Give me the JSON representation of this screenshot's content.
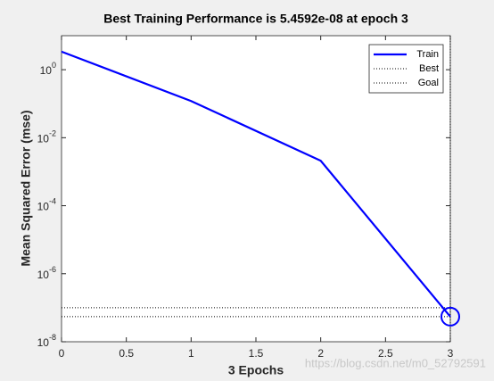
{
  "chart_data": {
    "type": "line",
    "title": "Best Training Performance is 5.4592e-08 at epoch 3",
    "x_label": "3 Epochs",
    "y_label": "Mean Squared Error  (mse)",
    "x": [
      0,
      1,
      2,
      3
    ],
    "series": [
      {
        "name": "Train",
        "color": "#0000ff",
        "values": [
          3.4,
          0.12,
          0.0021,
          5.4592e-08
        ]
      }
    ],
    "best": {
      "name": "Best",
      "color": "#000000",
      "epoch": 3,
      "value": 5.4592e-08
    },
    "goal": {
      "name": "Goal",
      "color": "#000000",
      "value": 1e-07
    },
    "xlim": [
      0,
      3
    ],
    "xticks": [
      0,
      0.5,
      1,
      1.5,
      2,
      2.5,
      3
    ],
    "ylim": [
      1e-08,
      10
    ],
    "y_log": true,
    "yticks": [
      {
        "value": 1e-08,
        "label": "10^-8"
      },
      {
        "value": 1e-06,
        "label": "10^-6"
      },
      {
        "value": 0.0001,
        "label": "10^-4"
      },
      {
        "value": 0.01,
        "label": "10^-2"
      },
      {
        "value": 1,
        "label": "10^0"
      }
    ],
    "legend_position": "northeast",
    "watermark": "https://blog.csdn.net/m0_52792591"
  }
}
